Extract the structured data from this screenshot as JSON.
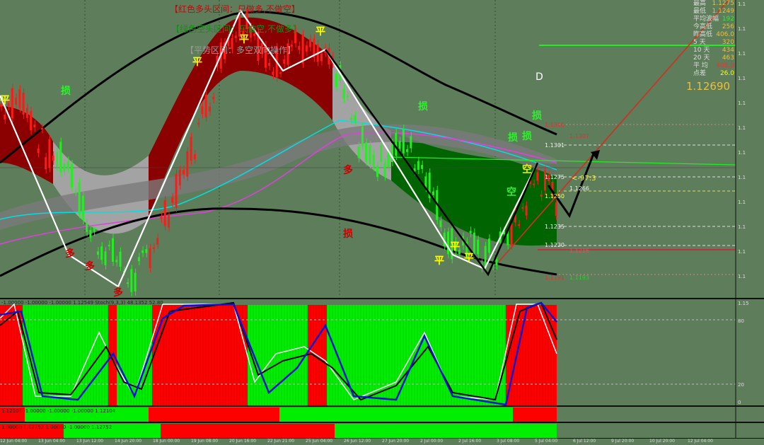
{
  "chart_data": {
    "type": "candlestick",
    "symbol_quote": "1.12690",
    "close": [
      1.1332,
      1.1338,
      1.1293,
      1.1287,
      1.123,
      1.1213,
      1.1191,
      1.123,
      1.127,
      1.1321,
      1.1383,
      1.1406,
      1.136,
      1.1383,
      1.1372,
      1.136,
      1.1304,
      1.1287,
      1.1304,
      1.1281,
      1.1225,
      1.1219,
      1.1211,
      1.1236,
      1.1276,
      1.1253
    ],
    "price_levels": [
      {
        "label": "1.1316",
        "color": "#d33"
      },
      {
        "label": "1.1307",
        "color": "#d33"
      },
      {
        "label": "1.1301",
        "color": "#eee"
      },
      {
        "label": "1.1275",
        "color": "#eee"
      },
      {
        "label": "1.1266",
        "color": "#eee"
      },
      {
        "label": "1.1250",
        "color": "#ff6"
      },
      {
        "label": "1.1235",
        "color": "#eee"
      },
      {
        "label": "1.1220",
        "color": "#eee"
      },
      {
        "label": "1.1216",
        "color": "#d55"
      },
      {
        "label": "1.1191",
        "color": "#d33"
      },
      {
        "label": "1.1193",
        "color": "#3c3"
      }
    ],
    "countdown": "<-97:3",
    "period_letter": "D",
    "signals": {
      "flat": "平",
      "long": "多",
      "short": "空",
      "stop": "损"
    },
    "time_labels": [
      "12 Jun 04:00",
      "13 Jun 04:00",
      "13 Jun 12:00",
      "14 Jun 20:00",
      "18 Jun 00:00",
      "19 Jun 08:00",
      "20 Jun 16:00",
      "22 Jun 21:00",
      "25 Jun 04:00",
      "26 Jun 12:00",
      "27 Jun 20:00",
      "2 Jul 00:00",
      "2 Jul 16:00",
      "3 Jul 08:00",
      "5 Jul 04:00",
      "6 Jul 12:00",
      "9 Jul 20:00",
      "10 Jul 20:00",
      "12 Jul 04:00"
    ],
    "axis_labels": [
      "1.1",
      "1.1",
      "1.1",
      "1.1",
      "1.1",
      "1.1",
      "1.1",
      "1.1",
      "1.1",
      "1.1",
      "1.1",
      "1.1"
    ],
    "stoch_axis": [
      "1.15",
      "80",
      "20",
      "0"
    ]
  },
  "legend": {
    "red": "【红色多头区间：只做多,不做空】",
    "green": "【绿色空头区间：只做空,不做多】",
    "grey": "【平势区间：多空双向操作】"
  },
  "info": [
    {
      "k": "最高",
      "v": "1.1275",
      "c": "#e8c040"
    },
    {
      "k": "最低",
      "v": "1.1249",
      "c": "#e8c040"
    },
    {
      "k": "平均波幅",
      "v": "192",
      "c": "#3e3"
    },
    {
      "k": "今高低",
      "v": "256",
      "c": "#e8c040"
    },
    {
      "k": "昨高低",
      "v": "406.0",
      "c": "#e8c040"
    },
    {
      "k": "5 天",
      "v": "320",
      "c": "#e8c040"
    },
    {
      "k": "10 天",
      "v": "434",
      "c": "#e8c040"
    },
    {
      "k": "20 天",
      "v": "463",
      "c": "#e8c040"
    },
    {
      "k": "平 均",
      "v": "405.0",
      "c": "#e33"
    },
    {
      "k": "点差",
      "v": "26.0",
      "c": "#ff0"
    }
  ],
  "indicators": {
    "stoch": "-1.00000 -1.00000 -1.00000 1.12549  Stoch(9,3,3) 48.1352 52.80",
    "ind2": "1.12104 -1.00000 -1.00000 -1.00000 1.12104",
    "ind3": "1.00000 1.12752 1.00000 -1.00000 1.12752"
  },
  "colors": {
    "bg": "#5d7d5b",
    "bull": "#ff1010",
    "bear": "#10ee10",
    "band_red": "#8b0000",
    "band_green": "#006400",
    "band_grey": "#a0a0a0"
  }
}
